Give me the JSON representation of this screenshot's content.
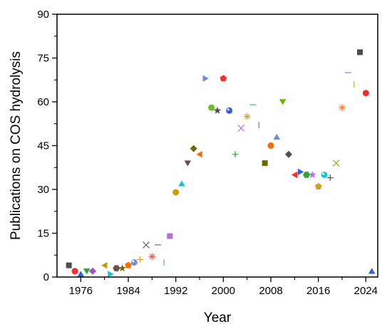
{
  "chart_data": {
    "type": "scatter",
    "xlabel": "Year",
    "ylabel": "Publications on COS hydrolysis",
    "xlim": [
      1972,
      2026
    ],
    "ylim": [
      0,
      90
    ],
    "x_ticks": [
      1976,
      1984,
      1992,
      2000,
      2008,
      2016,
      2024
    ],
    "y_ticks": [
      0,
      15,
      30,
      45,
      60,
      75,
      90
    ],
    "grid": false,
    "legend": "none",
    "points": [
      {
        "x": 1974,
        "y": 4,
        "marker": "square",
        "color": "#4d4d4d"
      },
      {
        "x": 1975,
        "y": 2,
        "marker": "circle",
        "color": "#ff2a2a"
      },
      {
        "x": 1976,
        "y": 1,
        "marker": "triangle-up",
        "color": "#2f5fd0"
      },
      {
        "x": 1977,
        "y": 2,
        "marker": "triangle-down",
        "color": "#2ea82e"
      },
      {
        "x": 1978,
        "y": 2,
        "marker": "diamond",
        "color": "#a64dc9"
      },
      {
        "x": 1980,
        "y": 4,
        "marker": "triangle-left",
        "color": "#c79a00"
      },
      {
        "x": 1981,
        "y": 1,
        "marker": "triangle-right",
        "color": "#12c6d6"
      },
      {
        "x": 1982,
        "y": 3,
        "marker": "hexagon",
        "color": "#6b5050"
      },
      {
        "x": 1983,
        "y": 3,
        "marker": "star",
        "color": "#6b6b00"
      },
      {
        "x": 1984,
        "y": 4,
        "marker": "pentagon",
        "color": "#ff6a00"
      },
      {
        "x": 1985,
        "y": 5,
        "marker": "sphere",
        "color": "#6c8ecf"
      },
      {
        "x": 1986,
        "y": 6,
        "marker": "plus",
        "color": "#c9a22a"
      },
      {
        "x": 1987,
        "y": 11,
        "marker": "cross",
        "color": "#7a6161"
      },
      {
        "x": 1988,
        "y": 7,
        "marker": "asterisk",
        "color": "#ff4d4d"
      },
      {
        "x": 1989,
        "y": 11,
        "marker": "dash",
        "color": "#4d6fd0"
      },
      {
        "x": 1990,
        "y": 5,
        "marker": "vline",
        "color": "#4fc44f"
      },
      {
        "x": 1991,
        "y": 14,
        "marker": "square",
        "color": "#b070e0"
      },
      {
        "x": 1992,
        "y": 29,
        "marker": "circle",
        "color": "#c9a000"
      },
      {
        "x": 1993,
        "y": 32,
        "marker": "triangle-up",
        "color": "#12c6d6"
      },
      {
        "x": 1994,
        "y": 39,
        "marker": "triangle-down",
        "color": "#6b4a4a"
      },
      {
        "x": 1995,
        "y": 44,
        "marker": "diamond",
        "color": "#6b6b00"
      },
      {
        "x": 1996,
        "y": 42,
        "marker": "triangle-left",
        "color": "#ff6a00"
      },
      {
        "x": 1997,
        "y": 68,
        "marker": "triangle-right",
        "color": "#6c8ecf"
      },
      {
        "x": 1998,
        "y": 58,
        "marker": "hexagon",
        "color": "#6bbf2a"
      },
      {
        "x": 1999,
        "y": 57,
        "marker": "star",
        "color": "#4d4d4d"
      },
      {
        "x": 2000,
        "y": 68,
        "marker": "pentagon",
        "color": "#ff2a2a"
      },
      {
        "x": 2001,
        "y": 57,
        "marker": "sphere",
        "color": "#2f5fd0"
      },
      {
        "x": 2002,
        "y": 42,
        "marker": "plus",
        "color": "#2ea82e"
      },
      {
        "x": 2003,
        "y": 51,
        "marker": "cross",
        "color": "#b070e0"
      },
      {
        "x": 2004,
        "y": 55,
        "marker": "asterisk",
        "color": "#d4a020"
      },
      {
        "x": 2005,
        "y": 59,
        "marker": "dash",
        "color": "#12c6d6"
      },
      {
        "x": 2006,
        "y": 52,
        "marker": "vline",
        "color": "#8a7070"
      },
      {
        "x": 2007,
        "y": 39,
        "marker": "square",
        "color": "#6b6b00"
      },
      {
        "x": 2008,
        "y": 45,
        "marker": "circle",
        "color": "#ff6a00"
      },
      {
        "x": 2009,
        "y": 48,
        "marker": "triangle-up",
        "color": "#6c8ecf"
      },
      {
        "x": 2010,
        "y": 60,
        "marker": "triangle-down",
        "color": "#5fbf00"
      },
      {
        "x": 2011,
        "y": 42,
        "marker": "diamond",
        "color": "#4d4d4d"
      },
      {
        "x": 2012,
        "y": 35,
        "marker": "triangle-left",
        "color": "#ff2a2a"
      },
      {
        "x": 2013,
        "y": 36,
        "marker": "triangle-right",
        "color": "#2f5fd0"
      },
      {
        "x": 2014,
        "y": 35,
        "marker": "hexagon",
        "color": "#2ea82e"
      },
      {
        "x": 2015,
        "y": 35,
        "marker": "star",
        "color": "#b070e0"
      },
      {
        "x": 2016,
        "y": 31,
        "marker": "pentagon",
        "color": "#d4a020"
      },
      {
        "x": 2017,
        "y": 35,
        "marker": "sphere",
        "color": "#12c6d6"
      },
      {
        "x": 2018,
        "y": 34,
        "marker": "plus",
        "color": "#6b5050"
      },
      {
        "x": 2019,
        "y": 39,
        "marker": "cross",
        "color": "#a0a020"
      },
      {
        "x": 2020,
        "y": 58,
        "marker": "asterisk",
        "color": "#ff7a2a"
      },
      {
        "x": 2021,
        "y": 70,
        "marker": "dash",
        "color": "#6c8ecf"
      },
      {
        "x": 2022,
        "y": 66,
        "marker": "vline",
        "color": "#9acd32"
      },
      {
        "x": 2023,
        "y": 77,
        "marker": "square",
        "color": "#4d4d4d"
      },
      {
        "x": 2024,
        "y": 63,
        "marker": "circle",
        "color": "#ff2a2a"
      },
      {
        "x": 2025,
        "y": 2,
        "marker": "triangle-up",
        "color": "#2f5fd0"
      }
    ]
  }
}
